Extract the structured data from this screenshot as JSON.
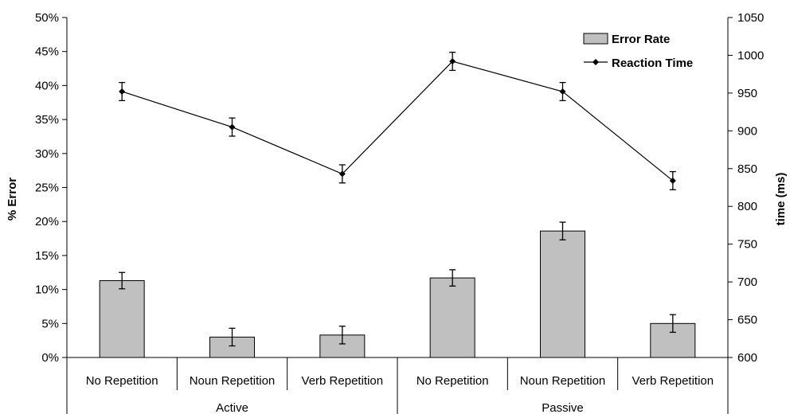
{
  "chart_data": {
    "type": "bar",
    "groups": [
      {
        "label": "Active",
        "categories": [
          "No Repetition",
          "Noun Repetition",
          "Verb Repetition"
        ]
      },
      {
        "label": "Passive",
        "categories": [
          "No Repetition",
          "Noun Repetition",
          "Verb Repetition"
        ]
      }
    ],
    "categories": [
      "No Repetition",
      "Noun Repetition",
      "Verb Repetition",
      "No Repetition",
      "Noun Repetition",
      "Verb Repetition"
    ],
    "series": [
      {
        "name": "Error Rate",
        "type": "bar",
        "axis": "left",
        "color": "#c0c0c0",
        "values": [
          11.3,
          3.0,
          3.3,
          11.7,
          18.6,
          5.0
        ],
        "error": [
          1.2,
          1.3,
          1.3,
          1.2,
          1.3,
          1.3
        ]
      },
      {
        "name": "Reaction Time",
        "type": "line",
        "axis": "right",
        "color": "#000000",
        "values": [
          952,
          905,
          843,
          992,
          952,
          834
        ],
        "error": [
          12,
          12,
          12,
          12,
          12,
          12
        ]
      }
    ],
    "y_left": {
      "label": "% Error",
      "range": [
        0,
        50
      ],
      "ticks": [
        0,
        5,
        10,
        15,
        20,
        25,
        30,
        35,
        40,
        45,
        50
      ],
      "tick_labels": [
        "0%",
        "5%",
        "10%",
        "15%",
        "20%",
        "25%",
        "30%",
        "35%",
        "40%",
        "45%",
        "50%"
      ]
    },
    "y_right": {
      "label": "time (ms)",
      "range": [
        600,
        1050
      ],
      "ticks": [
        600,
        650,
        700,
        750,
        800,
        850,
        900,
        950,
        1000,
        1050
      ],
      "tick_labels": [
        "600",
        "650",
        "700",
        "750",
        "800",
        "850",
        "900",
        "950",
        "1000",
        "1050"
      ]
    },
    "grid": false,
    "legend_position": "top-right"
  }
}
